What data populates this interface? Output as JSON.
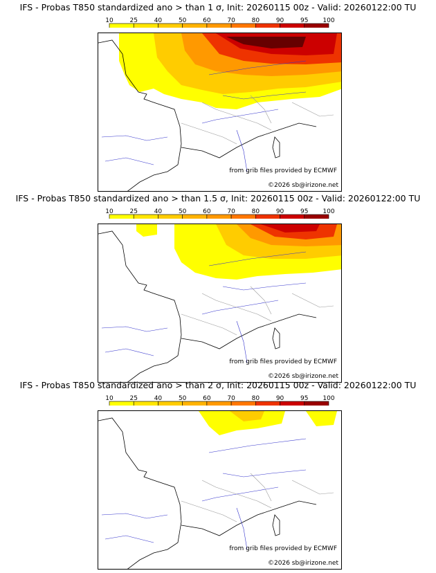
{
  "colorbar": {
    "levels": [
      "10",
      "25",
      "40",
      "50",
      "60",
      "70",
      "80",
      "90",
      "95",
      "100"
    ],
    "colors": [
      "#ffff00",
      "#ffe600",
      "#ffcc00",
      "#ffb300",
      "#ff9900",
      "#ff7700",
      "#ee3300",
      "#cc0000",
      "#990000",
      "#660000"
    ]
  },
  "credits": {
    "source": "from grib files provided by ECMWF",
    "copyright": "©2026 sb@irizone.net"
  },
  "panels": [
    {
      "title": "IFS - Probas T850  standardized ano > than 1 σ, Init: 20260115 00z - Valid: 20260122:00 TU",
      "threshold": "1 σ"
    },
    {
      "title": "IFS - Probas T850  standardized ano > than 1.5 σ, Init: 20260115 00z - Valid: 20260122:00 TU",
      "threshold": "1.5 σ"
    },
    {
      "title": "IFS - Probas T850  standardized ano > than 2 σ, Init: 20260115 00z - Valid: 20260122:00 TU",
      "threshold": "2 σ"
    }
  ]
}
